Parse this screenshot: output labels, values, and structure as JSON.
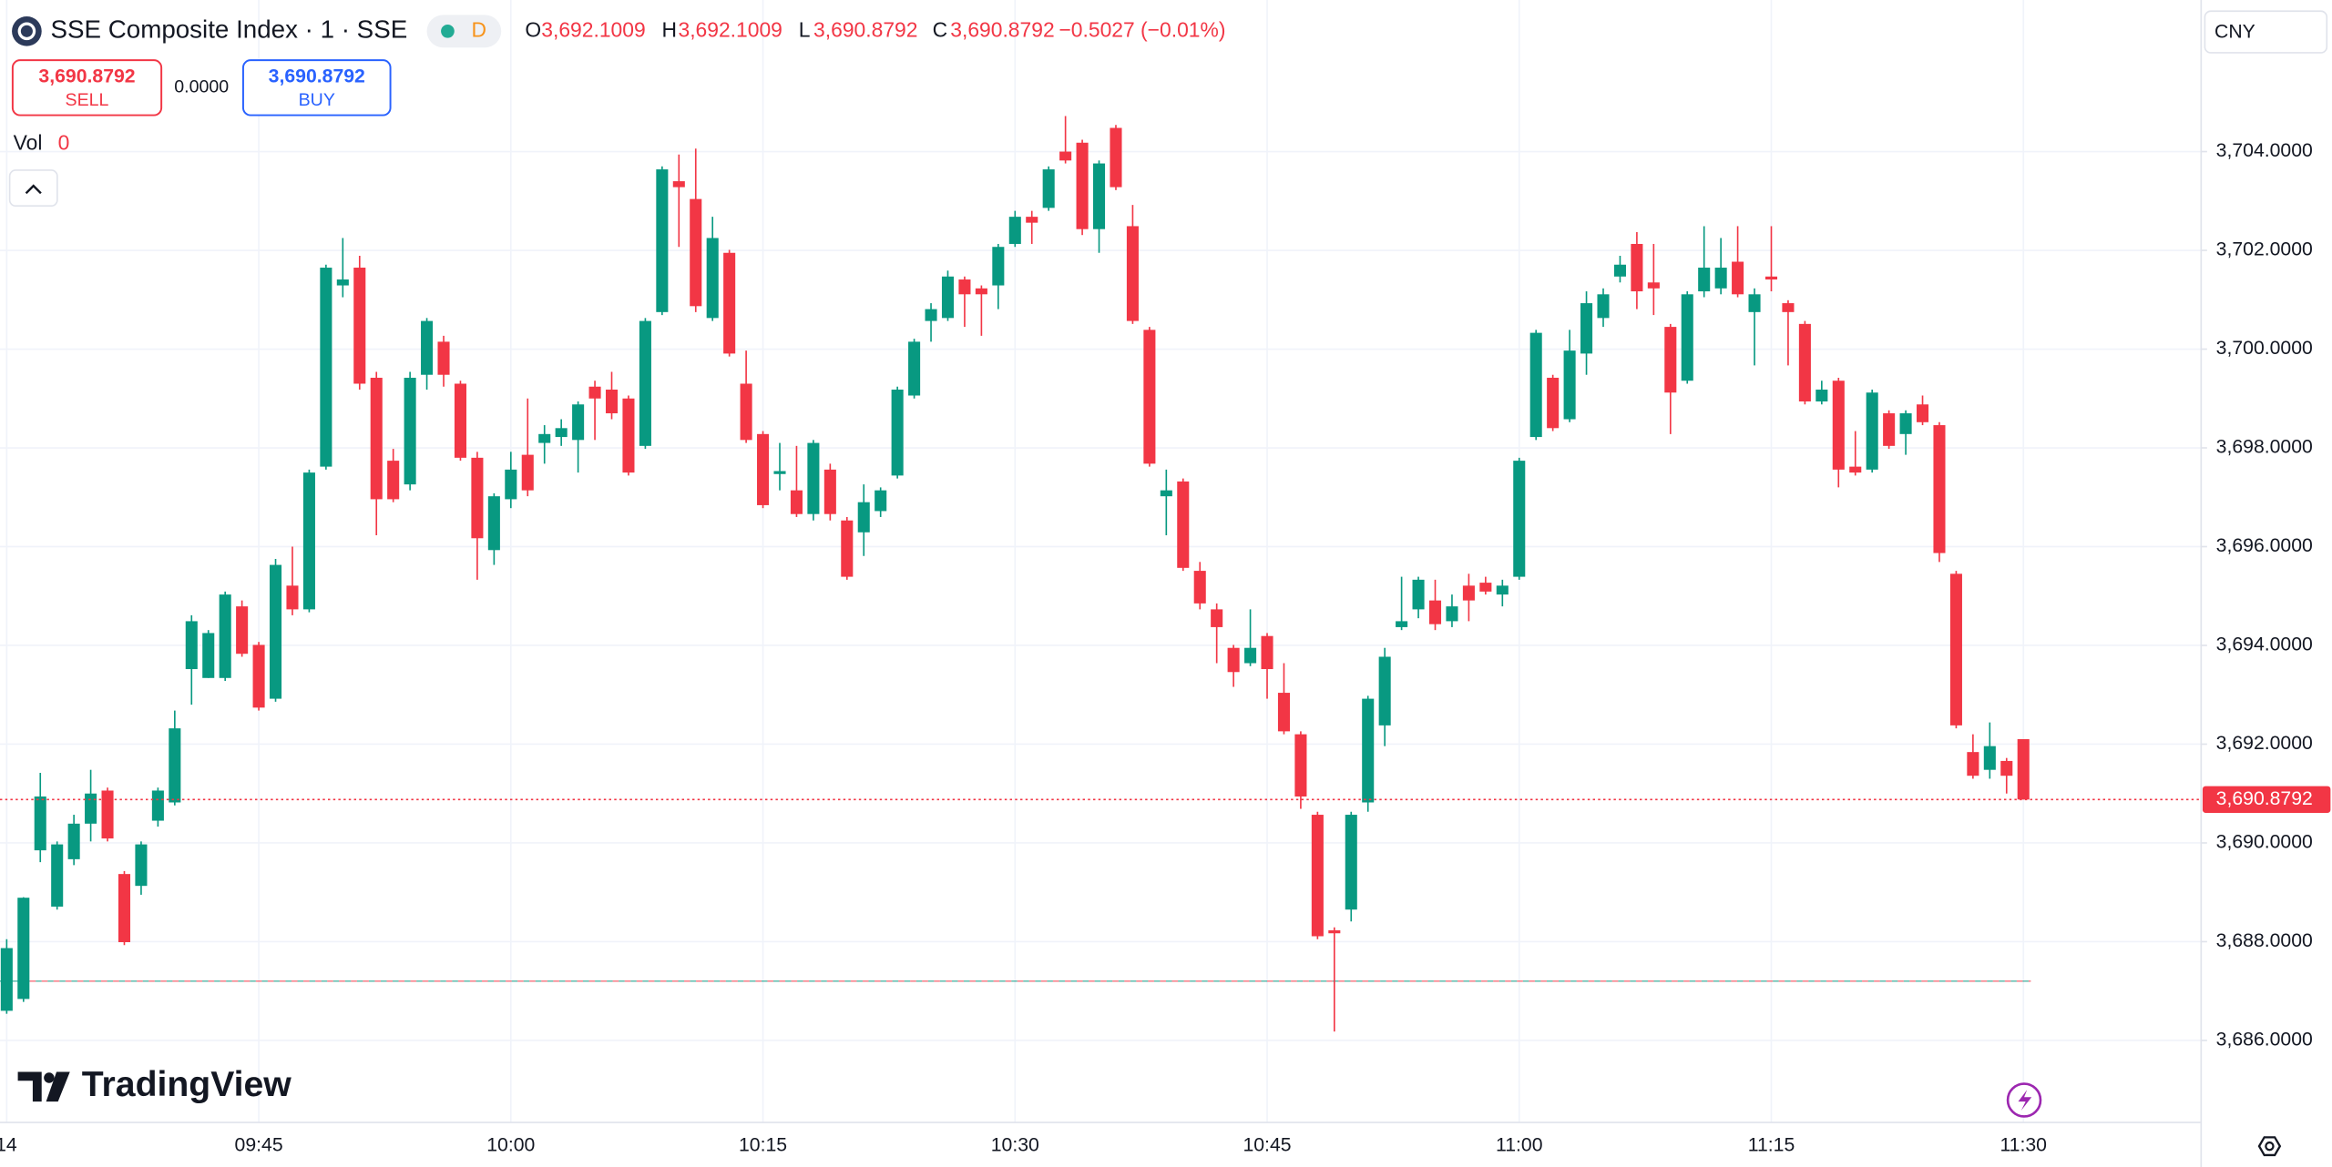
{
  "header": {
    "title": "SSE Composite Index · 1 · SSE",
    "interval_badge": "D",
    "ohlc": [
      {
        "key": "O",
        "value": "3,692.1009"
      },
      {
        "key": "H",
        "value": "3,692.1009"
      },
      {
        "key": "L",
        "value": "3,690.8792"
      },
      {
        "key": "C",
        "value": "3,690.8792"
      }
    ],
    "change": "−0.5027 (−0.01%)",
    "sell": {
      "price": "3,690.8792",
      "label": "SELL"
    },
    "spread": "0.0000",
    "buy": {
      "price": "3,690.8792",
      "label": "BUY"
    },
    "volume": {
      "label": "Vol",
      "value": "0"
    },
    "currency": "CNY",
    "brand": "TradingView"
  },
  "chart_data": {
    "type": "candlestick",
    "categories": [
      "14",
      null,
      null,
      null,
      null,
      null,
      null,
      null,
      null,
      null,
      null,
      null,
      null,
      null,
      null,
      "09:45",
      null,
      null,
      null,
      null,
      null,
      null,
      null,
      null,
      null,
      null,
      null,
      null,
      null,
      null,
      "10:00",
      null,
      null,
      null,
      null,
      null,
      null,
      null,
      null,
      null,
      null,
      null,
      null,
      null,
      null,
      "10:15",
      null,
      null,
      null,
      null,
      null,
      null,
      null,
      null,
      null,
      null,
      null,
      null,
      null,
      null,
      "10:30",
      null,
      null,
      null,
      null,
      null,
      null,
      null,
      null,
      null,
      null,
      null,
      null,
      null,
      null,
      "10:45",
      null,
      null,
      null,
      null,
      null,
      null,
      null,
      null,
      null,
      null,
      null,
      null,
      null,
      null,
      "11:00",
      null,
      null,
      null,
      null,
      null,
      null,
      null,
      null,
      null,
      null,
      null,
      null,
      null,
      null,
      "11:15",
      null,
      null,
      null,
      null,
      null,
      null,
      null,
      null,
      null,
      null,
      null,
      null,
      null,
      null,
      "11:30"
    ],
    "open": [
      3686.6,
      3686.84,
      3689.85,
      3688.71,
      3689.67,
      3690.39,
      3691.06,
      3689.37,
      3689.13,
      3690.45,
      3690.82,
      3693.52,
      3693.34,
      3693.34,
      3694.79,
      3694.01,
      3692.92,
      3695.21,
      3694.73,
      3697.62,
      3701.29,
      3701.65,
      3699.42,
      3697.74,
      3697.26,
      3699.48,
      3700.15,
      3699.3,
      3697.8,
      3695.93,
      3696.96,
      3697.86,
      3698.1,
      3698.22,
      3698.16,
      3699.24,
      3699.18,
      3699.0,
      3698.04,
      3700.75,
      3703.4,
      3703.04,
      3700.63,
      3701.95,
      3699.3,
      3698.28,
      3697.47,
      3697.14,
      3696.66,
      3697.56,
      3696.53,
      3696.29,
      3696.72,
      3697.44,
      3699.06,
      3700.57,
      3700.63,
      3701.41,
      3701.23,
      3701.29,
      3702.13,
      3702.68,
      3702.86,
      3704.0,
      3704.18,
      3702.43,
      3704.48,
      3702.49,
      3700.39,
      3697.02,
      3697.32,
      3695.51,
      3694.73,
      3693.95,
      3693.64,
      3694.19,
      3693.04,
      3692.2,
      3690.57,
      3688.23,
      3688.65,
      3690.82,
      3692.38,
      3694.37,
      3694.73,
      3694.91,
      3694.49,
      3695.21,
      3695.27,
      3695.03,
      3695.39,
      3698.22,
      3699.42,
      3698.58,
      3699.91,
      3700.63,
      3701.47,
      3702.13,
      3701.35,
      3700.45,
      3699.36,
      3701.17,
      3701.23,
      3701.77,
      3700.75,
      3701.47,
      3700.93,
      3700.51,
      3698.94,
      3699.36,
      3697.62,
      3697.56,
      3698.7,
      3698.28,
      3698.88,
      3698.46,
      3695.45,
      3691.84,
      3691.48,
      3691.66,
      3692.1009
    ],
    "high": [
      3688.05,
      3688.9,
      3691.42,
      3690.03,
      3690.57,
      3691.48,
      3691.12,
      3689.43,
      3690.03,
      3691.12,
      3692.68,
      3694.61,
      3694.31,
      3695.09,
      3694.91,
      3694.07,
      3695.75,
      3696.0,
      3697.56,
      3701.71,
      3702.25,
      3701.89,
      3699.54,
      3697.98,
      3699.54,
      3700.63,
      3700.27,
      3699.36,
      3697.92,
      3697.08,
      3697.92,
      3699.0,
      3698.46,
      3698.58,
      3698.94,
      3699.36,
      3699.54,
      3699.06,
      3700.63,
      3703.7,
      3703.94,
      3704.06,
      3702.68,
      3702.01,
      3699.97,
      3698.34,
      3698.1,
      3698.04,
      3698.16,
      3697.68,
      3696.6,
      3697.26,
      3697.2,
      3699.24,
      3700.21,
      3700.93,
      3701.59,
      3701.47,
      3701.29,
      3702.13,
      3702.8,
      3702.8,
      3703.7,
      3704.72,
      3704.24,
      3703.82,
      3704.54,
      3702.92,
      3700.45,
      3697.56,
      3697.38,
      3695.69,
      3694.85,
      3694.01,
      3694.73,
      3694.25,
      3693.64,
      3692.26,
      3690.63,
      3688.29,
      3690.63,
      3692.98,
      3693.95,
      3695.39,
      3695.39,
      3695.33,
      3695.03,
      3695.45,
      3695.39,
      3695.33,
      3697.8,
      3700.39,
      3699.48,
      3700.39,
      3701.17,
      3701.23,
      3701.89,
      3702.37,
      3702.13,
      3700.51,
      3701.17,
      3702.49,
      3702.25,
      3702.49,
      3701.23,
      3702.49,
      3700.99,
      3700.57,
      3699.36,
      3699.42,
      3698.34,
      3699.18,
      3698.76,
      3698.76,
      3699.06,
      3698.52,
      3695.51,
      3692.2,
      3692.44,
      3691.72,
      3692.1009
    ],
    "low": [
      3686.54,
      3686.78,
      3689.61,
      3688.65,
      3689.55,
      3690.03,
      3690.03,
      3687.93,
      3688.95,
      3690.33,
      3690.76,
      3692.8,
      3693.34,
      3693.28,
      3693.77,
      3692.68,
      3692.86,
      3694.61,
      3694.67,
      3697.56,
      3701.05,
      3699.18,
      3696.23,
      3696.9,
      3697.14,
      3699.18,
      3699.24,
      3697.74,
      3695.33,
      3695.63,
      3696.78,
      3697.02,
      3697.68,
      3698.04,
      3697.5,
      3698.16,
      3698.58,
      3697.44,
      3697.98,
      3700.69,
      3702.07,
      3700.75,
      3700.57,
      3699.85,
      3698.1,
      3696.78,
      3697.14,
      3696.6,
      3696.53,
      3696.53,
      3695.33,
      3695.81,
      3696.6,
      3697.38,
      3699.0,
      3700.15,
      3700.57,
      3700.45,
      3700.27,
      3700.81,
      3702.07,
      3702.13,
      3702.8,
      3703.76,
      3702.31,
      3701.95,
      3703.22,
      3700.51,
      3697.62,
      3696.23,
      3695.51,
      3694.73,
      3693.64,
      3693.16,
      3693.58,
      3692.92,
      3692.2,
      3690.69,
      3688.05,
      3686.18,
      3688.41,
      3690.63,
      3691.96,
      3694.31,
      3694.55,
      3694.31,
      3694.37,
      3694.49,
      3695.03,
      3694.79,
      3695.33,
      3698.16,
      3698.34,
      3698.52,
      3699.48,
      3700.45,
      3701.35,
      3700.81,
      3700.69,
      3698.28,
      3699.3,
      3701.05,
      3701.11,
      3701.05,
      3699.67,
      3701.17,
      3699.67,
      3698.88,
      3698.88,
      3697.2,
      3697.44,
      3697.5,
      3697.98,
      3697.86,
      3698.46,
      3695.69,
      3692.32,
      3691.3,
      3691.3,
      3691.0,
      3690.8792
    ],
    "close": [
      3687.87,
      3688.89,
      3690.94,
      3689.97,
      3690.39,
      3691.0,
      3690.09,
      3687.99,
      3689.97,
      3691.06,
      3692.32,
      3694.49,
      3694.25,
      3695.03,
      3693.83,
      3692.74,
      3695.63,
      3694.73,
      3697.5,
      3701.65,
      3701.41,
      3699.3,
      3696.96,
      3696.96,
      3699.42,
      3700.57,
      3699.48,
      3697.8,
      3696.17,
      3697.02,
      3697.56,
      3697.14,
      3698.28,
      3698.4,
      3698.88,
      3699.0,
      3698.7,
      3697.5,
      3700.57,
      3703.64,
      3703.28,
      3700.87,
      3702.25,
      3699.91,
      3698.16,
      3696.84,
      3697.53,
      3696.66,
      3698.1,
      3696.66,
      3695.39,
      3696.9,
      3697.14,
      3699.18,
      3700.15,
      3700.81,
      3701.47,
      3701.11,
      3701.11,
      3702.07,
      3702.68,
      3702.56,
      3703.64,
      3703.82,
      3702.43,
      3703.76,
      3703.28,
      3700.57,
      3697.68,
      3697.14,
      3695.57,
      3694.85,
      3694.37,
      3693.46,
      3693.95,
      3693.52,
      3692.26,
      3690.94,
      3688.11,
      3688.17,
      3690.57,
      3692.92,
      3693.77,
      3694.49,
      3695.33,
      3694.43,
      3694.79,
      3694.91,
      3695.09,
      3695.21,
      3697.74,
      3700.33,
      3698.4,
      3699.97,
      3700.93,
      3701.11,
      3701.71,
      3701.17,
      3701.23,
      3699.12,
      3701.11,
      3701.65,
      3701.65,
      3701.11,
      3701.11,
      3701.41,
      3700.75,
      3698.94,
      3699.18,
      3697.56,
      3697.5,
      3699.12,
      3698.04,
      3698.7,
      3698.52,
      3695.87,
      3692.38,
      3691.36,
      3691.96,
      3691.36,
      3690.8792
    ],
    "up_color": "#089981",
    "down_color": "#f23645",
    "last_price": {
      "value": 3690.8792,
      "label": "3,690.8792"
    },
    "prev_close": 3687.2,
    "ylim": [
      3684.34,
      3707.07
    ],
    "yticks": [
      {
        "value": 3686,
        "label": "3,686.0000"
      },
      {
        "value": 3688,
        "label": "3,688.0000"
      },
      {
        "value": 3690,
        "label": "3,690.0000"
      },
      {
        "value": 3692,
        "label": "3,692.0000"
      },
      {
        "value": 3694,
        "label": "3,694.0000"
      },
      {
        "value": 3696,
        "label": "3,696.0000"
      },
      {
        "value": 3698,
        "label": "3,698.0000"
      },
      {
        "value": 3700,
        "label": "3,700.0000"
      },
      {
        "value": 3702,
        "label": "3,702.0000"
      },
      {
        "value": 3704,
        "label": "3,704.0000"
      }
    ],
    "grid": true
  }
}
